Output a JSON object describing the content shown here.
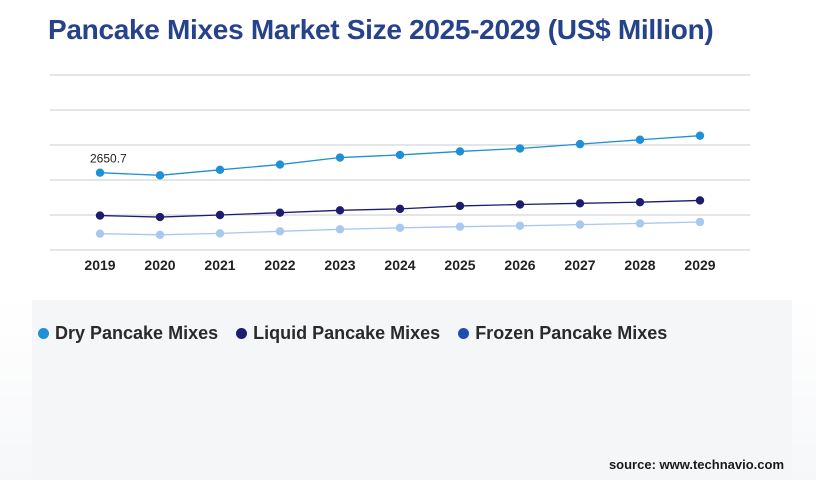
{
  "title": "Pancake Mixes Market Size 2025-2029 (US$ Million)",
  "source": "source: www.technavio.com",
  "colors": {
    "title": "#26428b",
    "grid": "#c9cbd0",
    "dry": "#1f8fd6",
    "liquid": "#1c1d6e",
    "frozen": "#a9c8f0"
  },
  "chart_data": {
    "type": "line",
    "title": "Pancake Mixes Market Size 2025-2029 (US$ Million)",
    "xlabel": "",
    "ylabel": "",
    "categories": [
      "2019",
      "2020",
      "2021",
      "2022",
      "2023",
      "2024",
      "2025",
      "2026",
      "2027",
      "2028",
      "2029"
    ],
    "ylim": [
      0,
      6000
    ],
    "grid": true,
    "legend_position": "bottom",
    "series": [
      {
        "name": "Dry Pancake Mixes",
        "color": "#1f8fd6",
        "values": [
          2650.7,
          2560,
          2750,
          2930,
          3170,
          3260,
          3380,
          3480,
          3630,
          3780,
          3920
        ]
      },
      {
        "name": "Liquid Pancake Mixes",
        "color": "#1c1d6e",
        "values": [
          1180,
          1130,
          1200,
          1280,
          1360,
          1410,
          1510,
          1560,
          1600,
          1640,
          1700
        ]
      },
      {
        "name": "Frozen Pancake Mixes",
        "color": "#a9c8f0",
        "values": [
          560,
          520,
          570,
          640,
          710,
          760,
          800,
          830,
          870,
          910,
          960
        ]
      }
    ],
    "data_labels": [
      {
        "series": "Dry Pancake Mixes",
        "category": "2019",
        "text": "2650.7"
      }
    ]
  }
}
